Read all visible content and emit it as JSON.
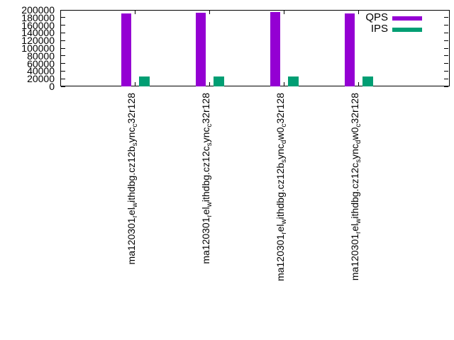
{
  "chart_data": {
    "type": "bar",
    "title": "",
    "xlabel": "",
    "ylabel": "",
    "ylim": [
      0,
      200000
    ],
    "ytick_labels": [
      "0",
      "20000",
      "40000",
      "60000",
      "80000",
      "100000",
      "120000",
      "140000",
      "160000",
      "180000",
      "200000"
    ],
    "grid": false,
    "legend_position": "top-right",
    "background_color": "#ffffff",
    "axis_color": "#000000",
    "categories": [
      "ma120301_rel_withdbg.cz12b_sync_c32r128",
      "ma120301_rel_withdbg.cz12c_sync_c32r128",
      "ma120301_rel_withdbg.cz12b_sync_dw0_c32r128",
      "ma120301_rel_withdbg.cz12c_sync_dw0_c32r128"
    ],
    "categories_rendered": [
      {
        "segments": [
          {
            "t": "ma120301"
          },
          {
            "t": "r",
            "sub": true
          },
          {
            "t": "el"
          },
          {
            "t": "w",
            "sub": true
          },
          {
            "t": "ithdbg.cz12b"
          },
          {
            "t": "s",
            "sub": true
          },
          {
            "t": "ync"
          },
          {
            "t": "c",
            "sub": true
          },
          {
            "t": "32r128"
          }
        ]
      },
      {
        "segments": [
          {
            "t": "ma120301"
          },
          {
            "t": "r",
            "sub": true
          },
          {
            "t": "el"
          },
          {
            "t": "w",
            "sub": true
          },
          {
            "t": "ithdbg.cz12c"
          },
          {
            "t": "s",
            "sub": true
          },
          {
            "t": "ync"
          },
          {
            "t": "c",
            "sub": true
          },
          {
            "t": "32r128"
          }
        ]
      },
      {
        "segments": [
          {
            "t": "ma120301"
          },
          {
            "t": "r",
            "sub": true
          },
          {
            "t": "el"
          },
          {
            "t": "w",
            "sub": true
          },
          {
            "t": "ithdbg.cz12b"
          },
          {
            "t": "s",
            "sub": true
          },
          {
            "t": "ync"
          },
          {
            "t": "d",
            "sub": true
          },
          {
            "t": "w0"
          },
          {
            "t": "c",
            "sub": true
          },
          {
            "t": "32r128"
          }
        ]
      },
      {
        "segments": [
          {
            "t": "ma120301"
          },
          {
            "t": "r",
            "sub": true
          },
          {
            "t": "el"
          },
          {
            "t": "w",
            "sub": true
          },
          {
            "t": "ithdbg.cz12c"
          },
          {
            "t": "s",
            "sub": true
          },
          {
            "t": "ync"
          },
          {
            "t": "d",
            "sub": true
          },
          {
            "t": "w0"
          },
          {
            "t": "c",
            "sub": true
          },
          {
            "t": "32r128"
          }
        ]
      }
    ],
    "series": [
      {
        "name": "QPS",
        "color": "#9400d3",
        "values": [
          190000,
          192000,
          195000,
          190000
        ]
      },
      {
        "name": "IPS",
        "color": "#009e73",
        "values": [
          25000,
          25000,
          25000,
          25000
        ]
      }
    ]
  }
}
